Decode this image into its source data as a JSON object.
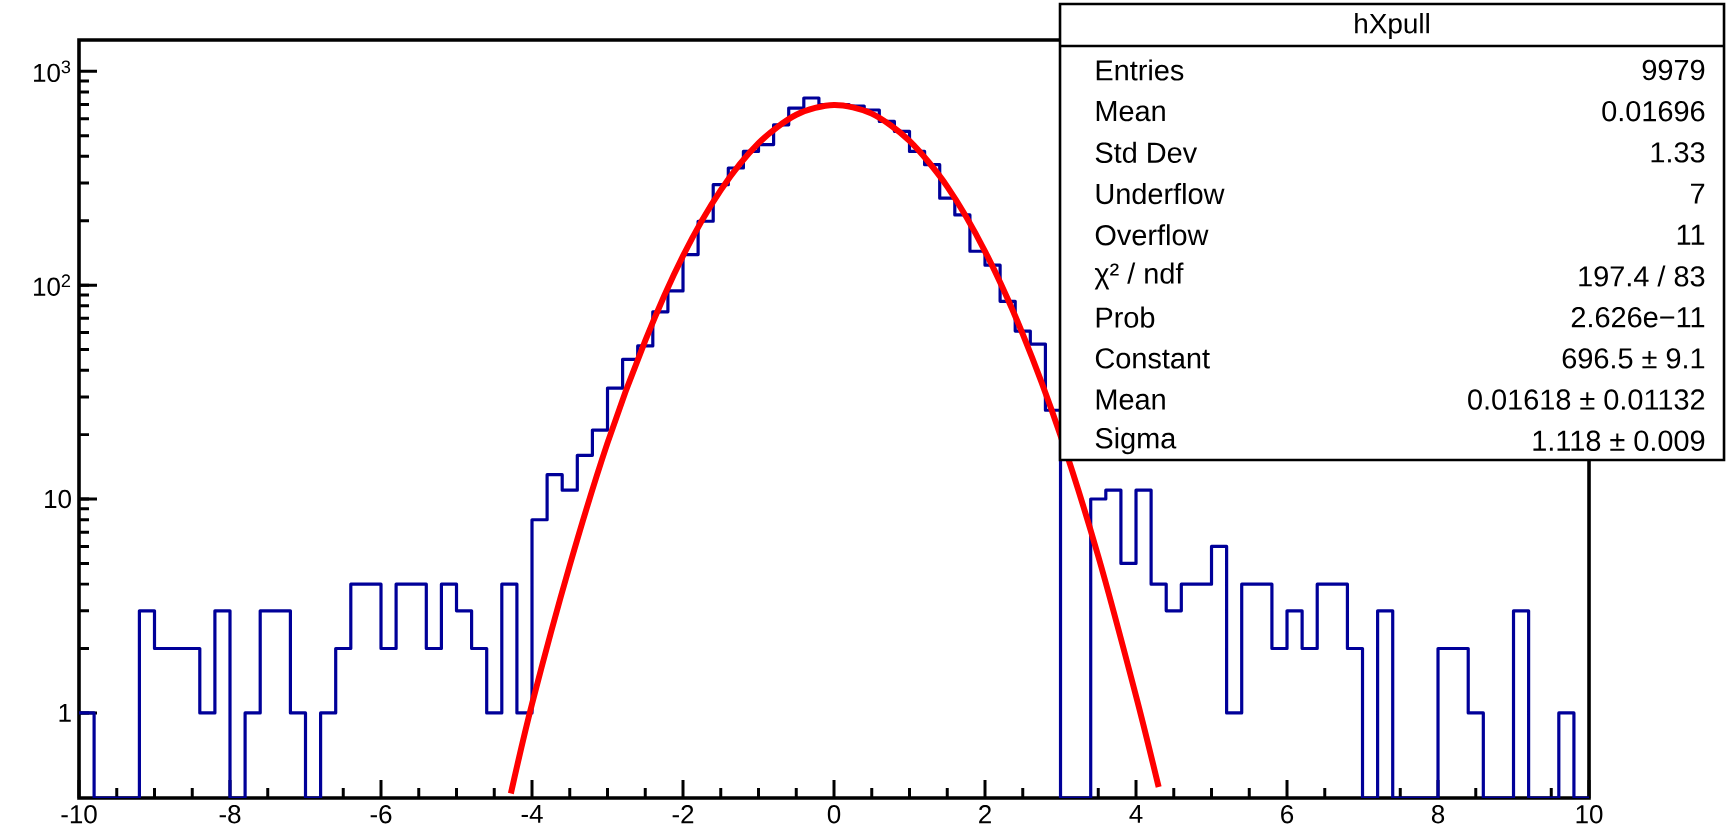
{
  "chart_data": {
    "type": "histogram",
    "log": "y",
    "xlim": [
      -10,
      10
    ],
    "ylim": [
      0.4,
      1400
    ],
    "xticks": [
      -10,
      -8,
      -6,
      -4,
      -2,
      0,
      2,
      4,
      6,
      8,
      10
    ],
    "yticks": [
      1,
      10,
      {
        "value": 100,
        "label": "10$^{2}$"
      },
      {
        "value": 1000,
        "label": "10$^{3}$"
      }
    ],
    "series": [
      {
        "color": "#000099",
        "bins": [
          -10,
          -9.8,
          -9.6,
          -9.4,
          -9.2,
          -9,
          -8.8,
          -8.6,
          -8.4,
          -8.2,
          -8,
          -7.8,
          -7.6,
          -7.4,
          -7.2,
          -7,
          -6.8,
          -6.6,
          -6.4,
          -6.2,
          -6,
          -5.8,
          -5.6,
          -5.4,
          -5.2,
          -5,
          -4.8,
          -4.6,
          -4.4,
          -4.2,
          -4,
          -3.8,
          -3.6,
          -3.4,
          -3.2,
          -3,
          -2.8,
          -2.6,
          -2.4,
          -2.2,
          -2,
          -1.8,
          -1.6,
          -1.4,
          -1.2,
          -1,
          -0.8,
          -0.6,
          -0.4,
          -0.2,
          0,
          0.2,
          0.4,
          0.6,
          0.8,
          1,
          1.2,
          1.4,
          1.6,
          1.8,
          2,
          2.2,
          2.4,
          2.6,
          2.8,
          3,
          3.2,
          3.4,
          3.6,
          3.8,
          4,
          4.2,
          4.4,
          4.6,
          4.8,
          5,
          5.2,
          5.4,
          5.6,
          5.8,
          6,
          6.2,
          6.4,
          6.6,
          6.8,
          7,
          7.2,
          7.4,
          7.6,
          7.8,
          8,
          8.2,
          8.4,
          8.6,
          8.8,
          9,
          9.2,
          9.4,
          9.6,
          9.8,
          10
        ],
        "values": [
          1,
          null,
          null,
          null,
          3,
          2,
          2,
          2,
          1,
          3,
          null,
          1,
          3,
          3,
          1,
          null,
          1,
          2,
          4,
          4,
          2,
          4,
          4,
          2,
          4,
          3,
          2,
          1,
          4,
          1,
          8,
          13,
          11,
          16,
          21,
          33,
          45,
          52,
          75,
          94,
          139,
          199,
          295,
          353,
          422,
          454,
          562,
          673,
          750,
          698,
          698,
          688,
          659,
          583,
          524,
          422,
          366,
          255,
          213,
          144,
          124,
          84,
          61,
          53,
          26,
          null,
          null,
          10,
          11,
          5,
          11,
          4,
          3,
          4,
          4,
          6,
          1,
          4,
          4,
          2,
          3,
          2,
          4,
          4,
          2,
          null,
          3,
          null,
          null,
          null,
          2,
          2,
          1,
          null,
          null,
          3,
          null,
          null,
          1,
          null
        ]
      },
      {
        "type": "line",
        "color": "#ff0000",
        "x": [
          -4.28,
          -4,
          -3.5,
          -3,
          -2.5,
          -2,
          -1.5,
          -1,
          -0.5,
          0,
          0.5,
          1,
          1.5,
          2,
          2.5,
          3,
          3.5,
          4,
          4.3
        ],
        "values": [
          0.42,
          1.1,
          4.9,
          18.3,
          55,
          137,
          278,
          461,
          626,
          696,
          634,
          473,
          289,
          144,
          59,
          19.8,
          5.4,
          1.2,
          0.45
        ]
      }
    ],
    "annotations": [
      "hXpull",
      "Entries",
      "9979",
      "Mean",
      "0.01696",
      "Std Dev",
      "1.33",
      "Underflow",
      "7",
      "Overflow",
      "11",
      "χ² / ndf",
      "197.4 / 83",
      "Prob",
      "2.626e−11",
      "Constant",
      "696.5 ± 9.1",
      "Mean",
      "0.01618 ± 0.01132",
      "Sigma",
      "1.118 ± 0.009"
    ]
  }
}
